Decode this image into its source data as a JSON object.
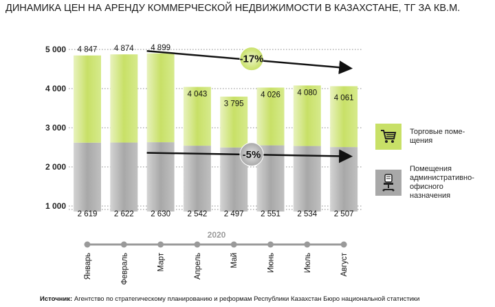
{
  "title": "ДИНАМИКА ЦЕН НА АРЕНДУ КОММЕРЧЕСКОЙ НЕДВИЖИМОСТИ В КАЗАХСТАНЕ, ТГ ЗА КВ.М.",
  "year_label": "2020",
  "colors": {
    "retail": "#c8e067",
    "office": "#a8a8a8",
    "accent_dark": "#111111"
  },
  "legend": [
    {
      "label": "Торговые поме-щения",
      "icon": "shopping-cart-icon"
    },
    {
      "label": "Помещения административно-офисного назначения",
      "icon": "office-chair-icon"
    }
  ],
  "source": {
    "prefix": "Источник:",
    "text": "Агентство по стратегическому планированию и реформам Республики Казахстан Бюро национальной статистики"
  },
  "chart_data": {
    "type": "bar",
    "categories": [
      "Январь",
      "Февраль",
      "Март",
      "Апрель",
      "Май",
      "Июнь",
      "Июль",
      "Август"
    ],
    "series": [
      {
        "name": "Торговые поме-щения",
        "values": [
          4847,
          4874,
          4899,
          4043,
          3795,
          4026,
          4080,
          4061
        ],
        "labels": [
          "4 847",
          "4 874",
          "4 899",
          "4 043",
          "3 795",
          "4 026",
          "4 080",
          "4 061"
        ]
      },
      {
        "name": "Помещения административно-офисного назначения",
        "values": [
          2619,
          2622,
          2630,
          2542,
          2497,
          2551,
          2534,
          2507
        ],
        "labels": [
          "2 619",
          "2 622",
          "2 630",
          "2 542",
          "2 497",
          "2 551",
          "2 534",
          "2 507"
        ]
      }
    ],
    "y_ticks": [
      5000,
      4000,
      3000,
      2000,
      1000
    ],
    "y_tick_labels": [
      "5 000",
      "4 000",
      "3 000",
      "2 000",
      "1 000"
    ],
    "ylim": [
      1000,
      5000
    ],
    "grid": true,
    "annotations": [
      {
        "text": "-17%",
        "series": 0,
        "from": "Март",
        "to": "Август"
      },
      {
        "text": "-5%",
        "series": 1,
        "from": "Март",
        "to": "Август"
      }
    ],
    "legend_position": "right"
  }
}
